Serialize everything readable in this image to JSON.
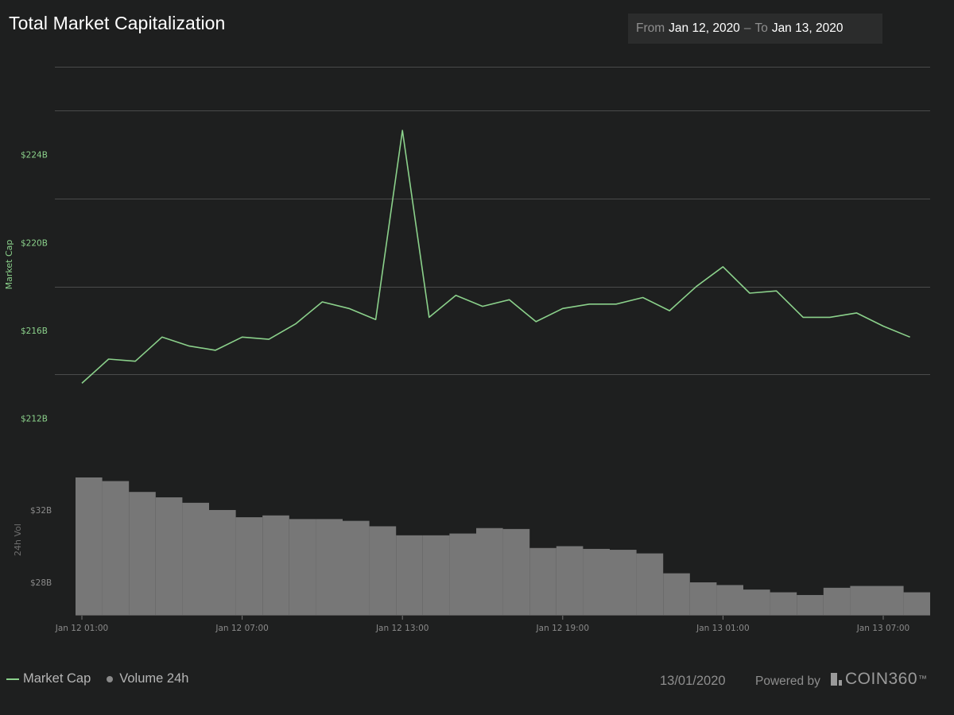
{
  "header": {
    "title": "Total Market Capitalization",
    "from_label": "From",
    "from_date": "Jan 12, 2020",
    "separator": "–",
    "to_label": "To",
    "to_date": "Jan 13, 2020"
  },
  "legend": {
    "market_cap_label": "Market Cap",
    "volume_label": "Volume 24h"
  },
  "footer": {
    "date": "13/01/2020",
    "powered_by": "Powered by",
    "brand": "COIN360",
    "trademark": "™"
  },
  "colors": {
    "background": "#1e1f1f",
    "line": "#8bd18b",
    "bars": "#777777",
    "grid": "#4a4b4b",
    "axis_text_price": "#8bd18b",
    "axis_text_volume": "#8a8a8a"
  },
  "chart_data": [
    {
      "type": "line",
      "title": "Total Market Capitalization",
      "ylabel": "Market Cap",
      "ylim": [
        210,
        228
      ],
      "yticks": [
        {
          "value": 212,
          "label": "$212B"
        },
        {
          "value": 216,
          "label": "$216B"
        },
        {
          "value": 220,
          "label": "$220B"
        },
        {
          "value": 224,
          "label": "$224B"
        }
      ],
      "x_hours": [
        1,
        2,
        3,
        4,
        5,
        6,
        7,
        8,
        9,
        10,
        11,
        12,
        13,
        14,
        15,
        16,
        17,
        18,
        19,
        20,
        21,
        22,
        23,
        24,
        25,
        26,
        27,
        28,
        29,
        30,
        31,
        32
      ],
      "values": [
        213.6,
        214.7,
        214.6,
        215.7,
        215.3,
        215.1,
        215.7,
        215.6,
        216.3,
        217.3,
        217.0,
        216.5,
        225.1,
        216.6,
        217.6,
        217.1,
        217.4,
        216.4,
        217.0,
        217.2,
        217.2,
        217.5,
        216.9,
        218.0,
        218.9,
        217.7,
        217.8,
        216.6,
        216.6,
        216.8,
        216.2,
        215.7
      ],
      "series_name": "Market Cap"
    },
    {
      "type": "bar",
      "ylabel": "24h Vol",
      "ylim": [
        26.2,
        33.8
      ],
      "yticks": [
        {
          "value": 28,
          "label": "$28B"
        },
        {
          "value": 32,
          "label": "$32B"
        }
      ],
      "x_hours": [
        1,
        2,
        3,
        4,
        5,
        6,
        7,
        8,
        9,
        10,
        11,
        12,
        13,
        14,
        15,
        16,
        17,
        18,
        19,
        20,
        21,
        22,
        23,
        24,
        25,
        26,
        27,
        28,
        29,
        30,
        31,
        32
      ],
      "values": [
        33.8,
        33.6,
        33.0,
        32.7,
        32.4,
        32.0,
        31.6,
        31.7,
        31.5,
        31.5,
        31.4,
        31.1,
        30.6,
        30.6,
        30.7,
        31.0,
        30.95,
        29.9,
        30.0,
        29.85,
        29.8,
        29.6,
        28.5,
        28.0,
        27.85,
        27.6,
        27.45,
        27.3,
        27.7,
        27.8,
        27.8,
        27.45
      ],
      "series_name": "Volume 24h"
    }
  ],
  "x_axis": {
    "ticks": [
      {
        "hour": 1,
        "label": "Jan 12 01:00"
      },
      {
        "hour": 7,
        "label": "Jan 12 07:00"
      },
      {
        "hour": 13,
        "label": "Jan 12 13:00"
      },
      {
        "hour": 19,
        "label": "Jan 12 19:00"
      },
      {
        "hour": 25,
        "label": "Jan 13 01:00"
      },
      {
        "hour": 31,
        "label": "Jan 13 07:00"
      }
    ]
  }
}
